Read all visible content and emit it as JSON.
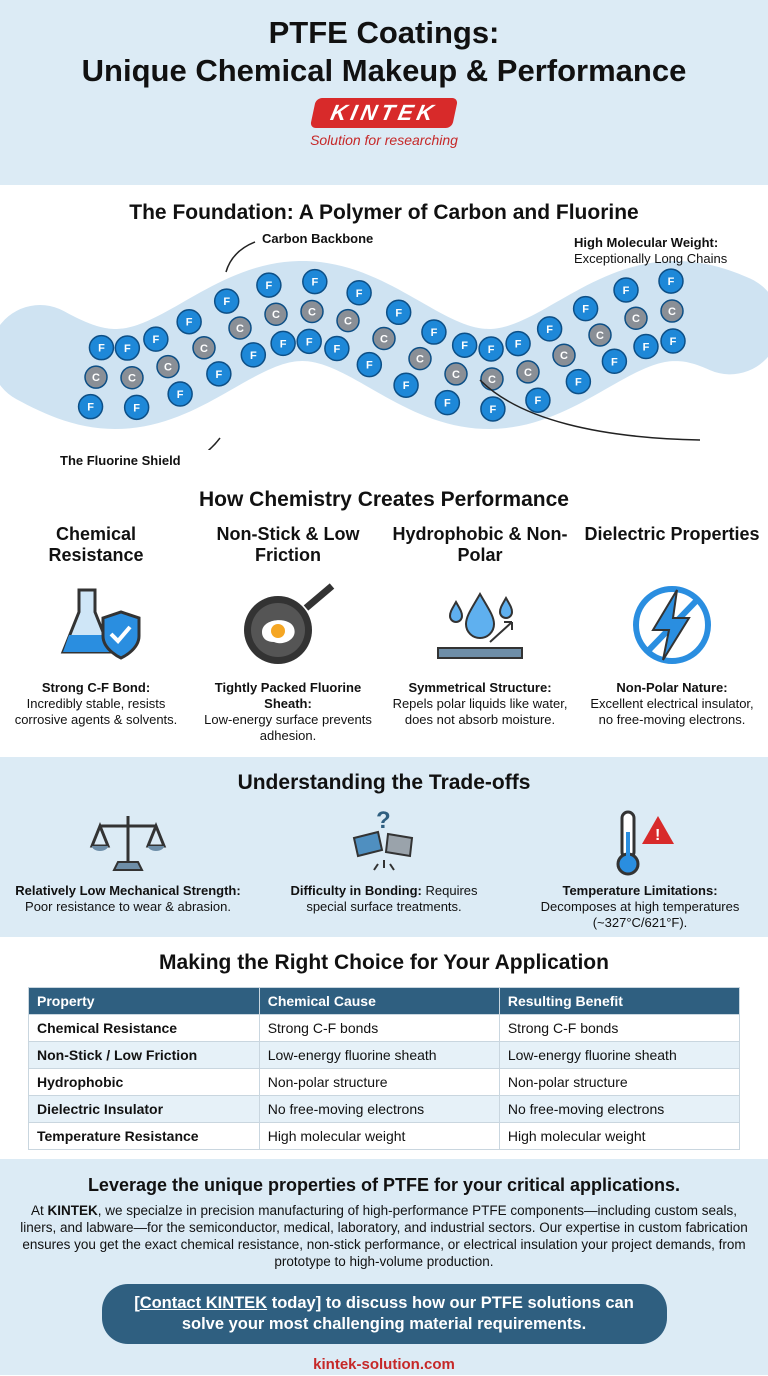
{
  "header": {
    "title_line1": "PTFE Coatings:",
    "title_line2": "Unique Chemical Makeup & Performance",
    "logo": "KINTEK",
    "tagline": "Solution for researching"
  },
  "foundation": {
    "title": "The Foundation: A Polymer of Carbon and Fluorine",
    "carbon_label": "Carbon Backbone",
    "mw_label": "High Molecular Weight:",
    "mw_desc": "Exceptionally Long Chains",
    "shield_label": "The Fluorine Shield",
    "atom_c": "C",
    "atom_f": "F"
  },
  "performance": {
    "title": "How Chemistry Creates Performance",
    "cards": [
      {
        "title": "Chemical Resistance",
        "icon": "flask-shield-icon",
        "bold": "Strong C-F Bond:",
        "text": "Incredibly stable, resists corrosive agents & solvents."
      },
      {
        "title": "Non-Stick & Low Friction",
        "icon": "frying-pan-egg-icon",
        "bold": "Tightly Packed Fluorine Sheath:",
        "text": "Low-energy surface prevents adhesion."
      },
      {
        "title": "Hydrophobic & Non-Polar",
        "icon": "water-drops-icon",
        "bold": "Symmetrical Structure:",
        "text": "Repels polar liquids like water, does not absorb moisture."
      },
      {
        "title": "Dielectric Properties",
        "icon": "lightning-blocked-icon",
        "bold": "Non-Polar Nature:",
        "text": "Excellent electrical insulator, no free-moving electrons."
      }
    ]
  },
  "tradeoffs": {
    "title": "Understanding the Trade-offs",
    "items": [
      {
        "icon": "balance-scale-icon",
        "bold": "Relatively Low Mechanical Strength:",
        "text": "Poor resistance to wear & abrasion."
      },
      {
        "icon": "broken-puzzle-icon",
        "bold": "Difficulty in Bonding:",
        "text": "Requires special surface treatments."
      },
      {
        "icon": "thermometer-warning-icon",
        "bold": "Temperature Limitations:",
        "text": "Decomposes at high temperatures (~327°C/621°F)."
      }
    ]
  },
  "choice": {
    "title": "Making the Right Choice for Your Application",
    "columns": [
      "Property",
      "Chemical Cause",
      "Resulting Benefit"
    ],
    "rows": [
      [
        "Chemical Resistance",
        "Strong C-F bonds",
        "Strong C-F bonds"
      ],
      [
        "Non-Stick / Low Friction",
        "Low-energy fluorine sheath",
        "Low-energy fluorine sheath"
      ],
      [
        "Hydrophobic",
        "Non-polar structure",
        "Non-polar structure"
      ],
      [
        "Dielectric Insulator",
        "No free-moving electrons",
        "No free-moving electrons"
      ],
      [
        "Temperature Resistance",
        "High molecular weight",
        "High molecular weight"
      ]
    ]
  },
  "footer": {
    "headline": "Leverage the unique properties of PTFE for your critical applications.",
    "para_prefix": "At ",
    "brand": "KINTEK",
    "para": ", we specialze in precision manufacturing of high-performance PTFE components—including custom seals, liners, and labware—for the semiconductor, medical, laboratory, and industrial sectors. Our expertise in custom fabrication ensures you get the exact chemical resistance, non-stick performance, or electrical insulation your project demands, from prototype to high-volume production.",
    "cta_open": "[",
    "cta_link": "Contact KINTEK",
    "cta_rest": " today] to discuss how our PTFE solutions can solve your most challenging material requirements.",
    "url": "kintek-solution.com"
  },
  "colors": {
    "bg_light": "#dcebf5",
    "accent_blue": "#2f5f80",
    "brand_red": "#d82a2a",
    "fluorine": "#1e88d8",
    "carbon": "#8a8f96"
  }
}
